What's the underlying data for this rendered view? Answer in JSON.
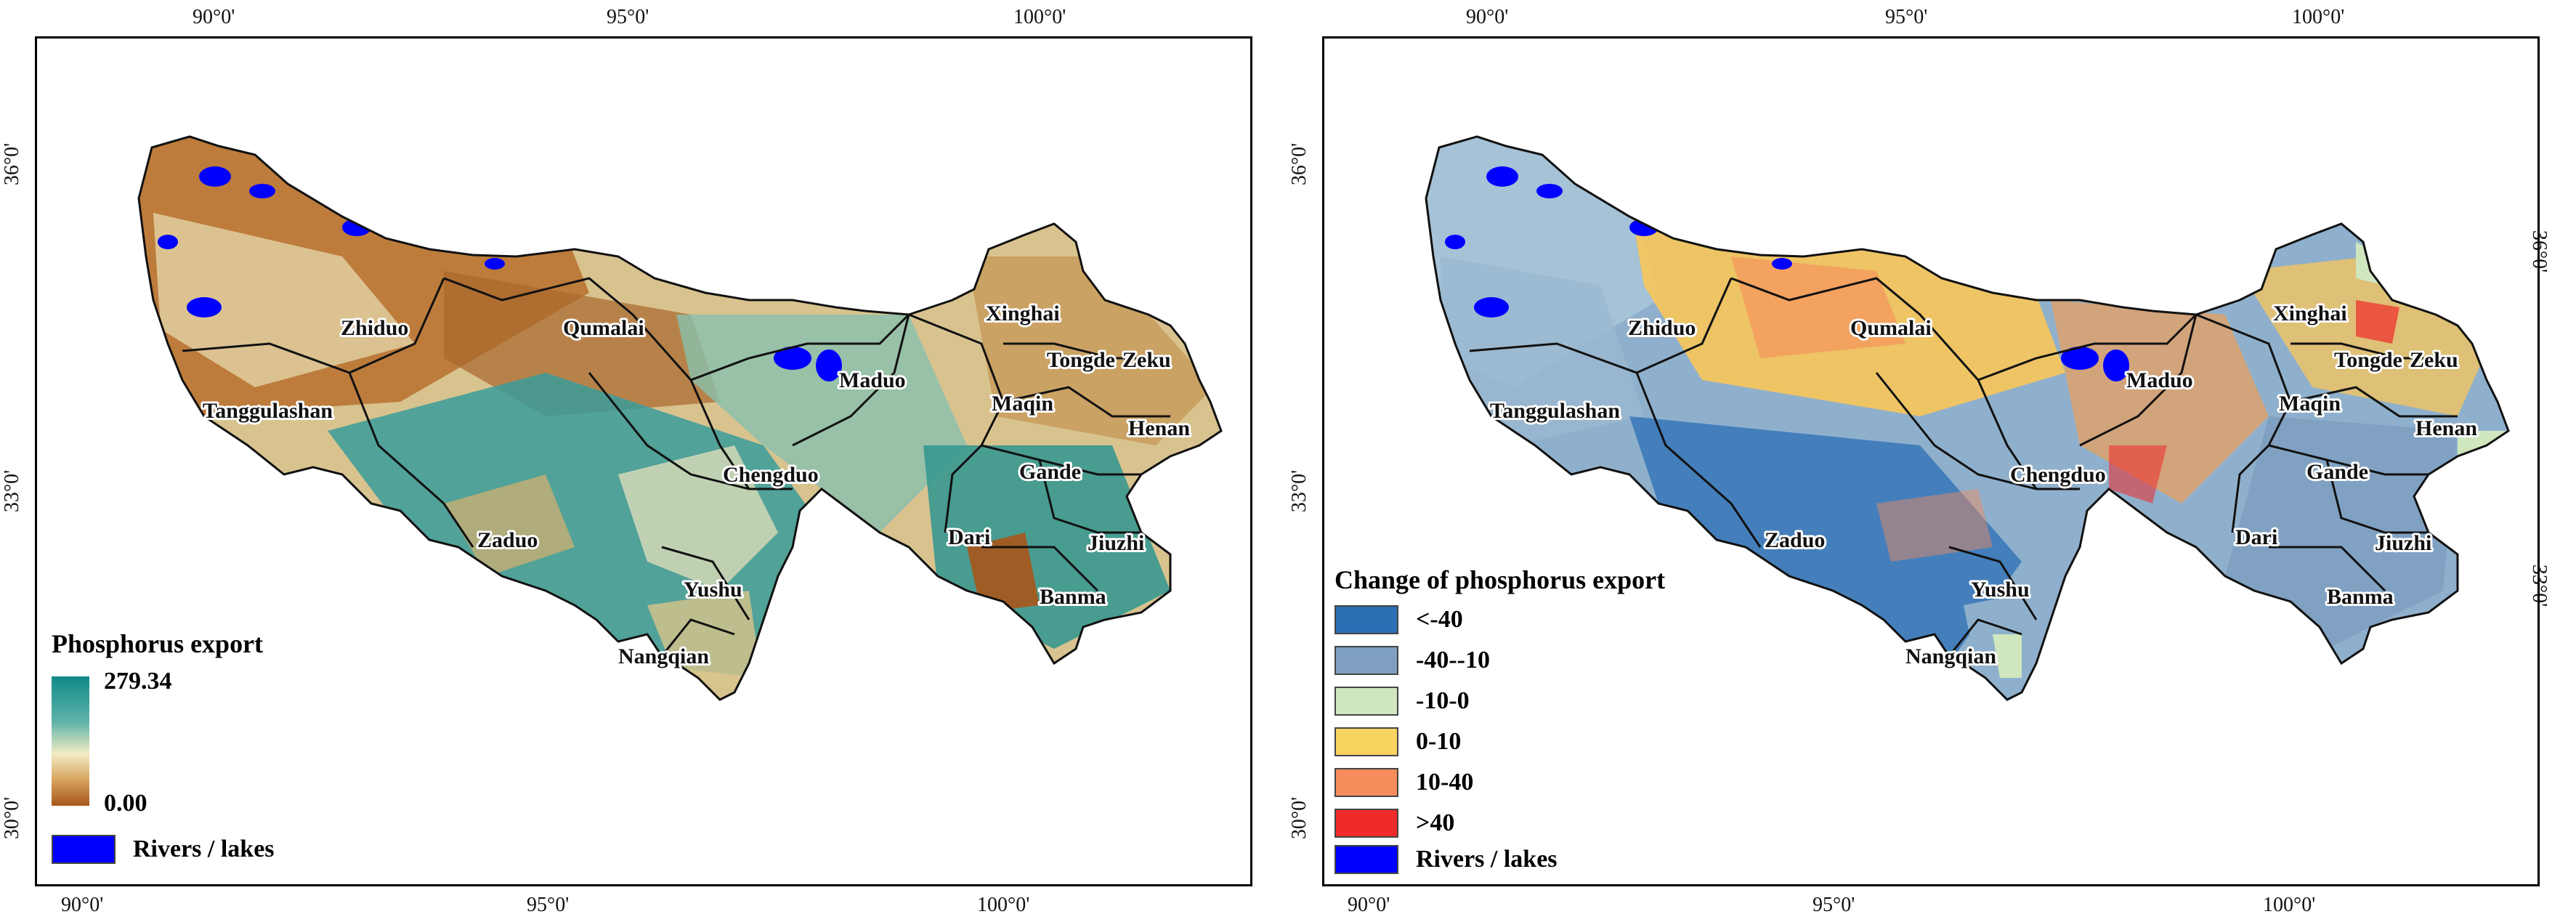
{
  "left_map": {
    "top_lon_ticks": [
      "90°0'",
      "95°0'",
      "100°0'"
    ],
    "bottom_lon_ticks": [
      "90°0'",
      "95°0'",
      "100°0'"
    ],
    "left_lat_ticks": [
      "36°0'",
      "33°0'",
      "30°0'"
    ],
    "counties": [
      "Zhiduo",
      "Qumalai",
      "Xinghai",
      "Tongde",
      "Zeku",
      "Tanggulashan",
      "Maduo",
      "Maqin",
      "Henan",
      "Chengduo",
      "Gande",
      "Zaduo",
      "Dari",
      "Jiuzhi",
      "Yushu",
      "Banma",
      "Nangqian"
    ],
    "legend": {
      "title": "Phosphorus export",
      "max_label": "279.34",
      "min_label": "0.00",
      "max_value": 279.34,
      "min_value": 0.0,
      "gradient_colors": [
        "#0f8a8a",
        "#5fb3a8",
        "#f3ecc4",
        "#d6a45e",
        "#a8561a"
      ],
      "water_label": "Rivers / lakes",
      "water_color": "#0000ff"
    }
  },
  "right_map": {
    "top_lon_ticks": [
      "90°0'",
      "95°0'",
      "100°0'"
    ],
    "bottom_lon_ticks": [
      "90°0'",
      "95°0'",
      "100°0'"
    ],
    "left_lat_ticks": [
      "36°0'",
      "33°0'",
      "30°0'"
    ],
    "right_lat_ticks": [
      "36°0'",
      "33°0'"
    ],
    "counties": [
      "Zhiduo",
      "Qumalai",
      "Xinghai",
      "Tongde",
      "Zeku",
      "Tanggulashan",
      "Maduo",
      "Maqin",
      "Henan",
      "Chengduo",
      "Gande",
      "Zaduo",
      "Dari",
      "Jiuzhi",
      "Yushu",
      "Banma",
      "Nangqian"
    ],
    "legend": {
      "title": "Change of phosphorus export",
      "classes": [
        {
          "label": "<-40",
          "color": "#2b6fb5"
        },
        {
          "label": "-40--10",
          "color": "#7e9fc0"
        },
        {
          "label": "-10-0",
          "color": "#cfe6bf"
        },
        {
          "label": "0-10",
          "color": "#f8d35e"
        },
        {
          "label": "10-40",
          "color": "#f78c5c"
        },
        {
          "label": ">40",
          "color": "#ef2a2a"
        },
        {
          "label": "Rivers / lakes",
          "color": "#0000ff"
        }
      ]
    }
  }
}
